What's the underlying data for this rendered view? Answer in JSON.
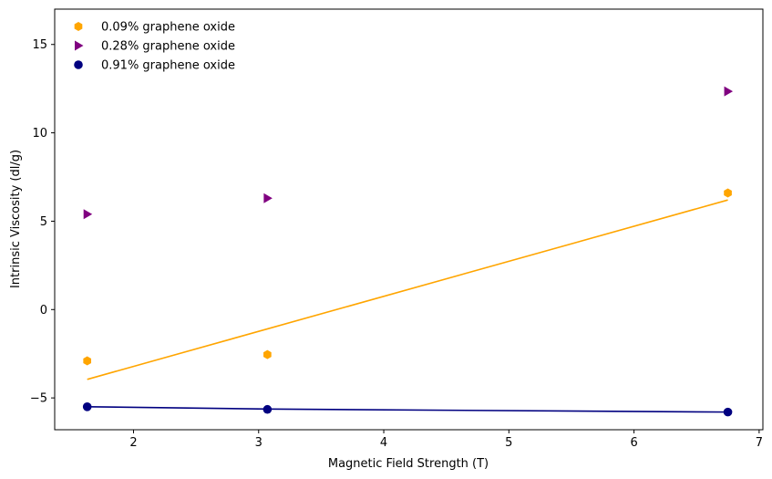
{
  "chart_data": {
    "type": "scatter",
    "xlabel": "Magnetic Field Strength (T)",
    "ylabel": "Intrinsic Viscosity (dl/g)",
    "xlim": [
      1.37,
      7.03
    ],
    "ylim": [
      -6.8,
      17.0
    ],
    "xticks": [
      2,
      3,
      4,
      5,
      6,
      7
    ],
    "yticks": [
      -5,
      0,
      5,
      10,
      15
    ],
    "grid": false,
    "legend_position": "top-left",
    "series": [
      {
        "name": "0.09% graphene oxide",
        "color": "#FFA500",
        "marker": "hexagon",
        "x": [
          1.63,
          3.07,
          6.75
        ],
        "y": [
          -2.9,
          -2.55,
          6.6
        ],
        "trendline": {
          "x": [
            1.63,
            6.75
          ],
          "y": [
            -3.95,
            6.2
          ]
        }
      },
      {
        "name": "0.28% graphene oxide",
        "color": "#800080",
        "marker": "triangle-right",
        "x": [
          1.63,
          3.07,
          6.75
        ],
        "y": [
          5.4,
          6.3,
          12.35
        ],
        "trendline": null
      },
      {
        "name": "0.91% graphene oxide",
        "color": "#000080",
        "marker": "circle",
        "x": [
          1.63,
          3.07,
          6.75
        ],
        "y": [
          -5.5,
          -5.65,
          -5.8
        ],
        "trendline": {
          "x": [
            1.63,
            3.07,
            6.75
          ],
          "y": [
            -5.5,
            -5.63,
            -5.8
          ]
        }
      }
    ]
  }
}
